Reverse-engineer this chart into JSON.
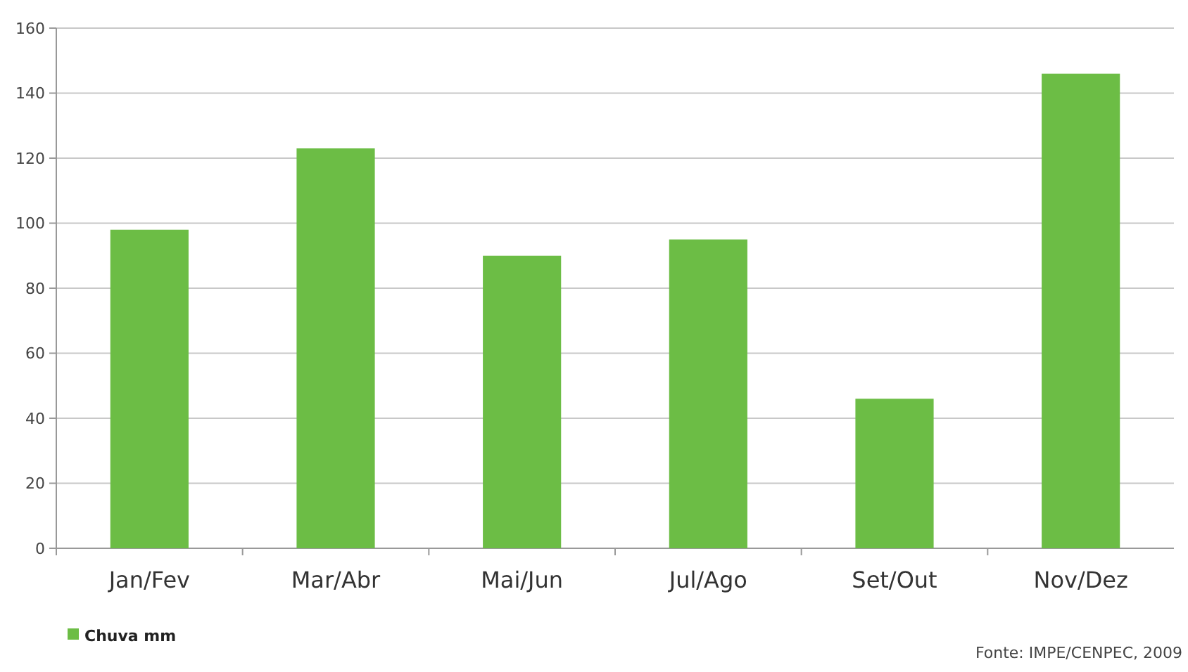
{
  "chart_data": {
    "type": "bar",
    "categories": [
      "Jan/Fev",
      "Mar/Abr",
      "Mai/Jun",
      "Jul/Ago",
      "Set/Out",
      "Nov/Dez"
    ],
    "series": [
      {
        "name": "Chuva mm",
        "color": "#6cbd45",
        "values": [
          98,
          123,
          90,
          95,
          46,
          146
        ]
      }
    ],
    "ylim": [
      0,
      160
    ],
    "yticks": [
      0,
      20,
      40,
      60,
      80,
      100,
      120,
      140,
      160
    ],
    "grid": "y",
    "legend": "bottom left",
    "annotations": [
      "Fonte: IMPE/CENPEC, 2009"
    ]
  }
}
